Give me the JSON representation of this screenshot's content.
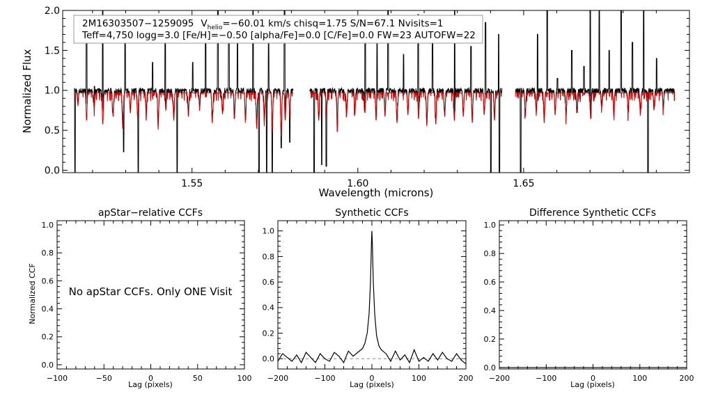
{
  "colors": {
    "observed": "#000000",
    "model": "#cc0000",
    "infobox_border": "#999999",
    "zero_line": "#888888"
  },
  "info": {
    "line1_id": "2M16303507−1259095",
    "v_prefix": "V",
    "v_sub": "helio",
    "line1_rest": "=−60.01 km/s  chisq=1.75  S/N=67.1  Nvisits=1",
    "line2": "Teff=4,750 logg=3.0 [Fe/H]=−0.50 [alpha/Fe]=0.0 [C/Fe]=0.0 FW=23 AUTOFW=22"
  },
  "chart_data": [
    {
      "id": "spectrum",
      "type": "line",
      "xlabel": "Wavelength (microns)",
      "ylabel": "Normalized Flux",
      "xlim": [
        1.511,
        1.7
      ],
      "ylim": [
        -0.03,
        2.0
      ],
      "xticks": [
        1.55,
        1.6,
        1.65
      ],
      "xtick_labels": [
        "1.55",
        "1.60",
        "1.65"
      ],
      "yticks": [
        0.0,
        0.5,
        1.0,
        1.5,
        2.0
      ],
      "ytick_labels": [
        "0.0",
        "0.5",
        "1.0",
        "1.5",
        "2.0"
      ],
      "detector_chips": [
        [
          1.5145,
          1.5805
        ],
        [
          1.5855,
          1.6435
        ],
        [
          1.6475,
          1.6955
        ]
      ],
      "series": [
        {
          "style": "observed",
          "continuum": 1.0,
          "noise": 0.03
        },
        {
          "style": "model",
          "continuum": 0.97
        }
      ],
      "absorption_lines": [
        {
          "x": 1.5156,
          "d": 0.15
        },
        {
          "x": 1.5182,
          "d": 0.35
        },
        {
          "x": 1.5205,
          "d": 0.2
        },
        {
          "x": 1.5231,
          "d": 0.4
        },
        {
          "x": 1.5262,
          "d": 0.3
        },
        {
          "x": 1.5291,
          "d": 0.45
        },
        {
          "x": 1.5314,
          "d": 0.25
        },
        {
          "x": 1.5336,
          "d": 0.32
        },
        {
          "x": 1.5362,
          "d": 0.28
        },
        {
          "x": 1.5398,
          "d": 0.4
        },
        {
          "x": 1.5421,
          "d": 0.22
        },
        {
          "x": 1.5445,
          "d": 0.35
        },
        {
          "x": 1.5489,
          "d": 0.3
        },
        {
          "x": 1.5523,
          "d": 0.2
        },
        {
          "x": 1.5561,
          "d": 0.38
        },
        {
          "x": 1.5592,
          "d": 0.27
        },
        {
          "x": 1.5628,
          "d": 0.33
        },
        {
          "x": 1.5661,
          "d": 0.3
        },
        {
          "x": 1.5695,
          "d": 0.45
        },
        {
          "x": 1.5718,
          "d": 0.35
        },
        {
          "x": 1.5742,
          "d": 0.5
        },
        {
          "x": 1.5769,
          "d": 0.55
        },
        {
          "x": 1.5781,
          "d": 0.35
        },
        {
          "x": 1.5795,
          "d": 0.3
        },
        {
          "x": 1.5882,
          "d": 0.35
        },
        {
          "x": 1.5905,
          "d": 0.2
        },
        {
          "x": 1.5938,
          "d": 0.4
        },
        {
          "x": 1.5966,
          "d": 0.3
        },
        {
          "x": 1.5991,
          "d": 0.28
        },
        {
          "x": 1.6021,
          "d": 0.25
        },
        {
          "x": 1.6055,
          "d": 0.35
        },
        {
          "x": 1.6082,
          "d": 0.3
        },
        {
          "x": 1.6118,
          "d": 0.38
        },
        {
          "x": 1.6151,
          "d": 0.28
        },
        {
          "x": 1.6183,
          "d": 0.33
        },
        {
          "x": 1.6208,
          "d": 0.42
        },
        {
          "x": 1.6235,
          "d": 0.4
        },
        {
          "x": 1.6262,
          "d": 0.3
        },
        {
          "x": 1.6291,
          "d": 0.35
        },
        {
          "x": 1.6318,
          "d": 0.3
        },
        {
          "x": 1.6345,
          "d": 0.38
        },
        {
          "x": 1.6381,
          "d": 0.28
        },
        {
          "x": 1.6412,
          "d": 0.35
        },
        {
          "x": 1.6505,
          "d": 0.3
        },
        {
          "x": 1.6538,
          "d": 0.25
        },
        {
          "x": 1.6562,
          "d": 0.38
        },
        {
          "x": 1.6595,
          "d": 0.28
        },
        {
          "x": 1.6628,
          "d": 0.3
        },
        {
          "x": 1.6661,
          "d": 0.25
        },
        {
          "x": 1.6702,
          "d": 0.33
        },
        {
          "x": 1.6735,
          "d": 0.2
        },
        {
          "x": 1.6772,
          "d": 0.3
        },
        {
          "x": 1.6815,
          "d": 0.25
        },
        {
          "x": 1.6852,
          "d": 0.28
        },
        {
          "x": 1.6893,
          "d": 0.22
        },
        {
          "x": 1.6921,
          "d": 0.2
        }
      ],
      "emission_spikes": [
        {
          "x": 1.5147,
          "y": 2.0
        },
        {
          "x": 1.5182,
          "y": 1.9
        },
        {
          "x": 1.5206,
          "y": 1.05
        },
        {
          "x": 1.5231,
          "y": 2.0
        },
        {
          "x": 1.5298,
          "y": 1.8
        },
        {
          "x": 1.5338,
          "y": 2.0
        },
        {
          "x": 1.5381,
          "y": 1.35
        },
        {
          "x": 1.5419,
          "y": 1.85
        },
        {
          "x": 1.5455,
          "y": 2.0
        },
        {
          "x": 1.5502,
          "y": 1.35
        },
        {
          "x": 1.5541,
          "y": 1.9
        },
        {
          "x": 1.5578,
          "y": 2.0
        },
        {
          "x": 1.5611,
          "y": 1.8
        },
        {
          "x": 1.5637,
          "y": 1.6
        },
        {
          "x": 1.5684,
          "y": 2.0
        },
        {
          "x": 1.5731,
          "y": 1.6
        },
        {
          "x": 1.5779,
          "y": 2.0
        },
        {
          "x": 1.6022,
          "y": 1.75
        },
        {
          "x": 1.6058,
          "y": 1.6
        },
        {
          "x": 1.6091,
          "y": 2.0
        },
        {
          "x": 1.6138,
          "y": 1.45
        },
        {
          "x": 1.6182,
          "y": 1.95
        },
        {
          "x": 1.6225,
          "y": 1.6
        },
        {
          "x": 1.6292,
          "y": 2.0
        },
        {
          "x": 1.6341,
          "y": 1.55
        },
        {
          "x": 1.6385,
          "y": 1.85
        },
        {
          "x": 1.6425,
          "y": 1.7
        },
        {
          "x": 1.6491,
          "y": 1.6
        },
        {
          "x": 1.6542,
          "y": 1.7
        },
        {
          "x": 1.6571,
          "y": 2.0
        },
        {
          "x": 1.6602,
          "y": 1.15
        },
        {
          "x": 1.6645,
          "y": 1.5
        },
        {
          "x": 1.6682,
          "y": 1.3
        },
        {
          "x": 1.6701,
          "y": 2.0
        },
        {
          "x": 1.6728,
          "y": 2.0
        },
        {
          "x": 1.6758,
          "y": 1.5
        },
        {
          "x": 1.6794,
          "y": 2.0
        },
        {
          "x": 1.6828,
          "y": 1.6
        },
        {
          "x": 1.6862,
          "y": 2.0
        },
        {
          "x": 1.6901,
          "y": 1.4
        }
      ],
      "deep_dips": [
        {
          "x": 1.5147,
          "y": -0.03
        },
        {
          "x": 1.5294,
          "y": 0.23
        },
        {
          "x": 1.5338,
          "y": -0.03
        },
        {
          "x": 1.5455,
          "y": -0.03
        },
        {
          "x": 1.5702,
          "y": -0.03
        },
        {
          "x": 1.5725,
          "y": -0.03
        },
        {
          "x": 1.5742,
          "y": -0.03
        },
        {
          "x": 1.5769,
          "y": 0.28
        },
        {
          "x": 1.5795,
          "y": 0.35
        },
        {
          "x": 1.5868,
          "y": -0.03
        },
        {
          "x": 1.5891,
          "y": 0.07
        },
        {
          "x": 1.5905,
          "y": 0.05
        },
        {
          "x": 1.6401,
          "y": -0.03
        },
        {
          "x": 1.6427,
          "y": -0.03
        },
        {
          "x": 1.6491,
          "y": -0.03
        },
        {
          "x": 1.6875,
          "y": -0.03
        }
      ]
    },
    {
      "id": "aprel",
      "type": "line",
      "title": "apStar−relative CCFs",
      "xlabel": "Lag (pixels)",
      "ylabel": "Normalized CCF",
      "xlim": [
        -100,
        100
      ],
      "ylim": [
        -0.03,
        1.03
      ],
      "xticks": [
        -100,
        -50,
        0,
        50,
        100
      ],
      "xtick_labels": [
        "−100",
        "−50",
        "0",
        "50",
        "100"
      ],
      "yticks": [
        0.0,
        0.2,
        0.4,
        0.6,
        0.8,
        1.0
      ],
      "ytick_labels": [
        "0.0",
        "0.2",
        "0.4",
        "0.6",
        "0.8",
        "1.0"
      ],
      "note": "No apStar CCFs.  Only ONE Visit"
    },
    {
      "id": "synth",
      "type": "line",
      "title": "Synthetic CCFs",
      "xlabel": "Lag (pixels)",
      "xlim": [
        -200,
        200
      ],
      "ylim": [
        -0.08,
        1.08
      ],
      "xticks": [
        -200,
        -100,
        0,
        100,
        200
      ],
      "xtick_labels": [
        "−200",
        "−100",
        "0",
        "100",
        "200"
      ],
      "yticks": [
        0.0,
        0.2,
        0.4,
        0.6,
        0.8,
        1.0
      ],
      "ytick_labels": [
        "0.0",
        "0.2",
        "0.4",
        "0.6",
        "0.8",
        "1.0"
      ],
      "peak_lag": 0,
      "peak_value": 1.0,
      "baseline": 0.0,
      "series": [
        {
          "x": [
            -200,
            -190,
            -180,
            -170,
            -160,
            -150,
            -140,
            -130,
            -120,
            -110,
            -100,
            -90,
            -80,
            -70,
            -60,
            -50,
            -40,
            -30,
            -20,
            -15,
            -10,
            -6,
            -3,
            -1,
            0,
            1,
            3,
            6,
            10,
            15,
            20,
            30,
            40,
            50,
            60,
            70,
            80,
            90,
            100,
            110,
            120,
            130,
            140,
            150,
            160,
            170,
            180,
            190,
            200
          ],
          "y": [
            -0.02,
            0.04,
            0.01,
            -0.02,
            0.03,
            -0.03,
            0.05,
            0.01,
            -0.03,
            0.04,
            0.0,
            -0.02,
            0.05,
            0.02,
            -0.03,
            0.06,
            0.02,
            0.05,
            0.08,
            0.12,
            0.2,
            0.35,
            0.6,
            0.9,
            1.0,
            0.9,
            0.6,
            0.35,
            0.18,
            0.1,
            0.07,
            0.04,
            -0.02,
            0.06,
            -0.01,
            0.03,
            -0.03,
            0.07,
            -0.02,
            0.01,
            -0.02,
            0.04,
            -0.01,
            0.05,
            0.0,
            -0.02,
            0.04,
            -0.01,
            -0.04
          ]
        }
      ]
    },
    {
      "id": "diff",
      "type": "line",
      "title": "Difference Synthetic CCFs",
      "xlabel": "Lag (pixels)",
      "xlim": [
        -200,
        200
      ],
      "ylim": [
        -0.01,
        1.03
      ],
      "xticks": [
        -200,
        -100,
        0,
        100,
        200
      ],
      "xtick_labels": [
        "−200",
        "−100",
        "0",
        "100",
        "200"
      ],
      "yticks": [
        0.0,
        0.2,
        0.4,
        0.6,
        0.8,
        1.0
      ],
      "ytick_labels": [
        "0.0",
        "0.2",
        "0.4",
        "0.6",
        "0.8",
        "1.0"
      ],
      "series": [
        {
          "x": [
            -200,
            200
          ],
          "y": [
            0.0,
            0.0
          ]
        }
      ]
    }
  ]
}
